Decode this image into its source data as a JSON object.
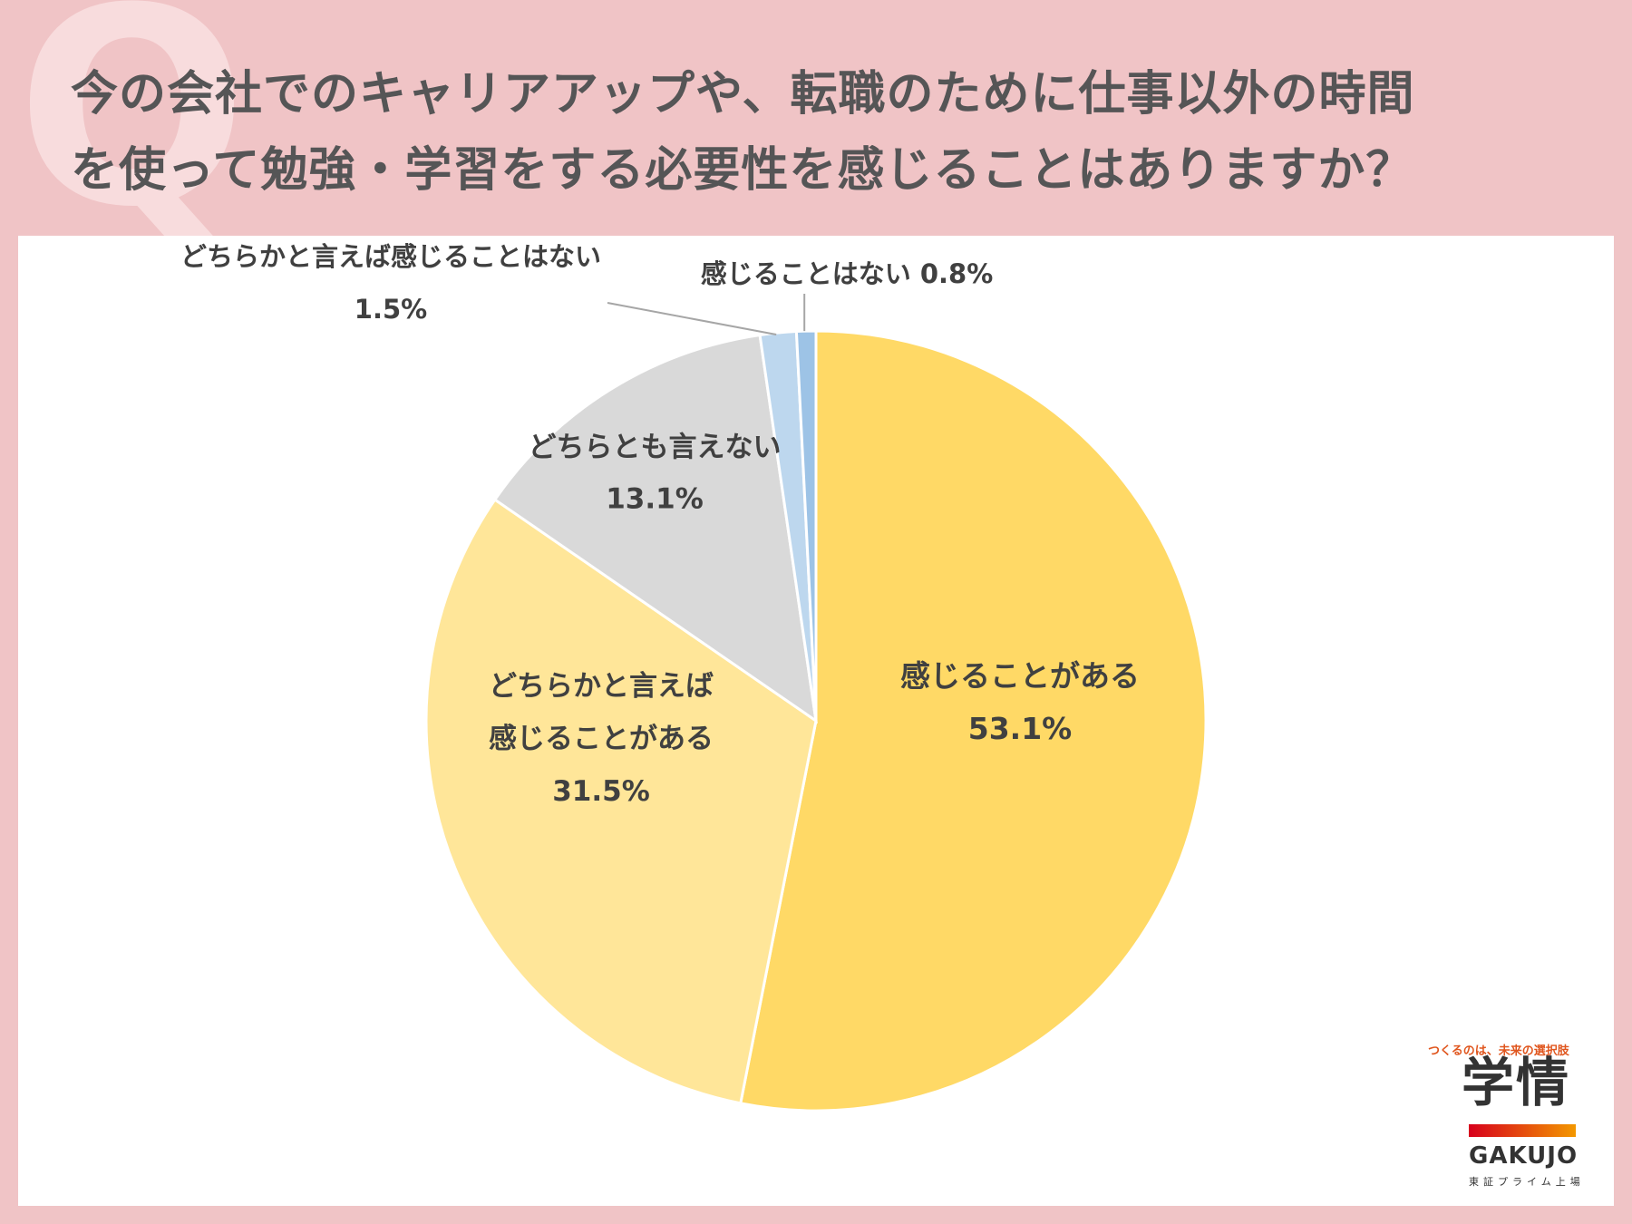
{
  "title": {
    "line1": "今の会社でのキャリアアップや、転職のために仕事以外の時間",
    "line2": "を使って勉強・学習をする必要性を感じることはありますか？"
  },
  "chart_data": {
    "type": "pie",
    "slices": [
      {
        "label": "感じることがある",
        "value": 53.1,
        "value_text": "53.1%",
        "color": "#ffd966"
      },
      {
        "label": "どちらかと言えば\n感じることがある",
        "value": 31.5,
        "value_text": "31.5%",
        "color": "#ffe699"
      },
      {
        "label": "どちらとも言えない",
        "value": 13.1,
        "value_text": "13.1%",
        "color": "#d9d9d9"
      },
      {
        "label": "どちらかと言えば感じることはない",
        "value": 1.5,
        "value_text": "1.5%",
        "color": "#bdd7ee"
      },
      {
        "label": "感じることはない",
        "value": 0.8,
        "value_text": "0.8%",
        "color": "#9dc3e6"
      }
    ]
  },
  "logo": {
    "tagline": "つくるのは、未来の選択肢",
    "name": "学情",
    "name_en": "GAKUJO",
    "sub": "東証プライム上場"
  }
}
